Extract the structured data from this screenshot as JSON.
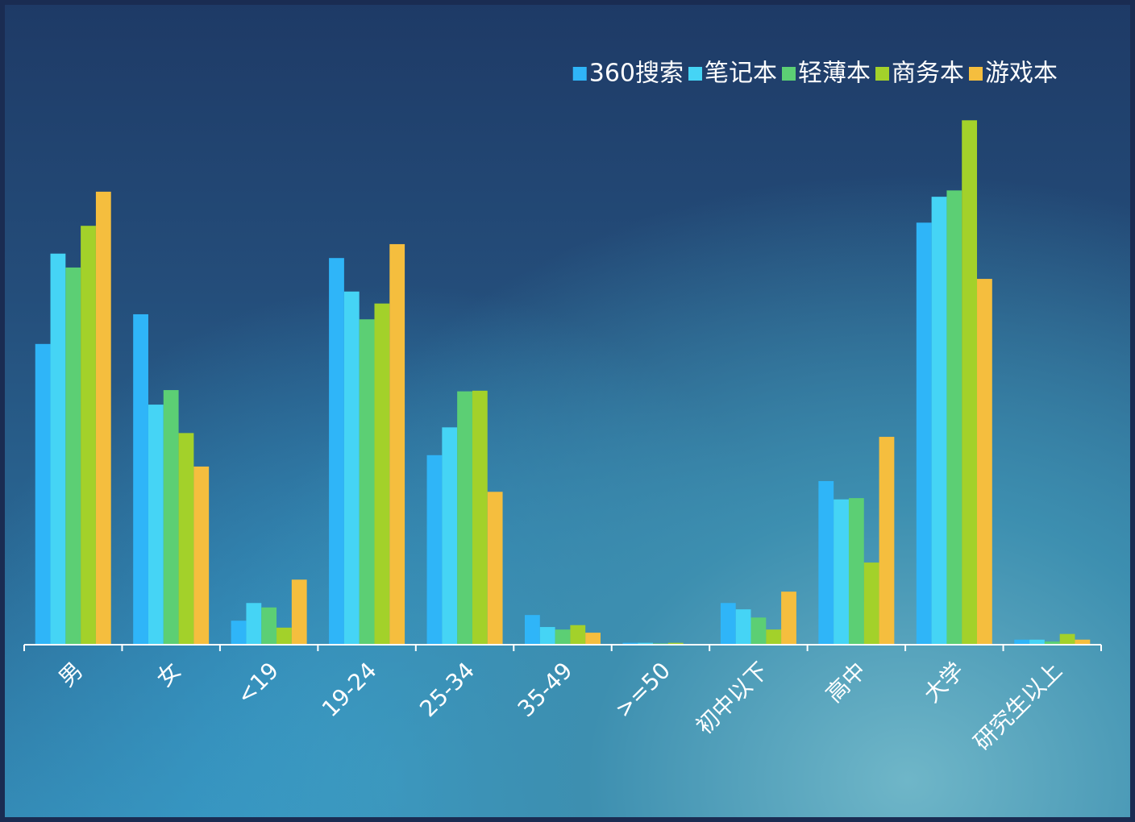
{
  "chart_data": {
    "type": "bar",
    "categories": [
      "男",
      "女",
      "<19",
      "19-24",
      "25-34",
      "35-49",
      ">=50",
      "初中以下",
      "高中",
      "大学",
      "研究生以上"
    ],
    "series": [
      {
        "name": "360搜索",
        "color": "#2fb5f8",
        "values": [
          47.6,
          52.3,
          3.8,
          61.2,
          30.0,
          4.7,
          0.3,
          6.6,
          25.9,
          66.8,
          0.8
        ]
      },
      {
        "name": "笔记本",
        "color": "#45d4f5",
        "values": [
          61.9,
          38.0,
          6.6,
          55.9,
          34.4,
          2.8,
          0.3,
          5.6,
          23.0,
          70.9,
          0.8
        ]
      },
      {
        "name": "轻薄本",
        "color": "#5ccf74",
        "values": [
          59.7,
          40.3,
          5.9,
          51.5,
          40.1,
          2.4,
          0.2,
          4.3,
          23.2,
          71.9,
          0.5
        ]
      },
      {
        "name": "商务本",
        "color": "#a3d12a",
        "values": [
          66.3,
          33.5,
          2.7,
          54.0,
          40.2,
          3.1,
          0.3,
          2.4,
          13.0,
          83.0,
          1.7
        ]
      },
      {
        "name": "游戏本",
        "color": "#f5be3e",
        "values": [
          71.7,
          28.2,
          10.3,
          63.4,
          24.2,
          1.9,
          0.1,
          8.4,
          32.9,
          57.9,
          0.8
        ]
      }
    ],
    "ylim": [
      0,
      100
    ],
    "legend": "top-right"
  }
}
